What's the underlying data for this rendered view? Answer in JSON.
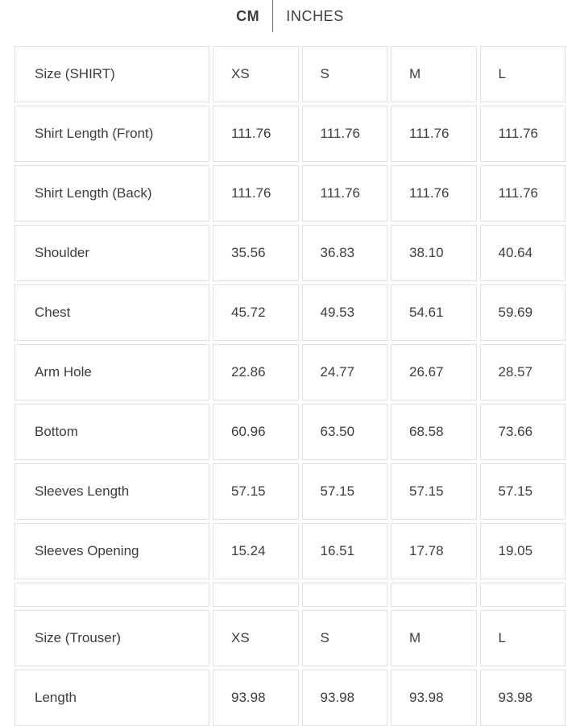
{
  "unit_toggle": {
    "options": [
      {
        "label": "CM",
        "active": true
      },
      {
        "label": "INCHES",
        "active": false
      }
    ]
  },
  "size_chart": {
    "rows": [
      {
        "kind": "header",
        "label": "Size (SHIRT)",
        "values": [
          "XS",
          "S",
          "M",
          "L"
        ]
      },
      {
        "kind": "data",
        "label": "Shirt Length (Front)",
        "values": [
          "111.76",
          "111.76",
          "111.76",
          "111.76"
        ]
      },
      {
        "kind": "data",
        "label": "Shirt Length (Back)",
        "values": [
          "111.76",
          "111.76",
          "111.76",
          "111.76"
        ]
      },
      {
        "kind": "data",
        "label": "Shoulder",
        "values": [
          "35.56",
          "36.83",
          "38.10",
          "40.64"
        ]
      },
      {
        "kind": "data",
        "label": "Chest",
        "values": [
          "45.72",
          "49.53",
          "54.61",
          "59.69"
        ]
      },
      {
        "kind": "data",
        "label": "Arm Hole",
        "values": [
          "22.86",
          "24.77",
          "26.67",
          "28.57"
        ]
      },
      {
        "kind": "data",
        "label": "Bottom",
        "values": [
          "60.96",
          "63.50",
          "68.58",
          "73.66"
        ]
      },
      {
        "kind": "data",
        "label": "Sleeves Length",
        "values": [
          "57.15",
          "57.15",
          "57.15",
          "57.15"
        ]
      },
      {
        "kind": "data",
        "label": "Sleeves Opening",
        "values": [
          "15.24",
          "16.51",
          "17.78",
          "19.05"
        ]
      },
      {
        "kind": "spacer",
        "label": "",
        "values": [
          "",
          "",
          "",
          ""
        ]
      },
      {
        "kind": "header",
        "label": "Size (Trouser)",
        "values": [
          "XS",
          "S",
          "M",
          "L"
        ]
      },
      {
        "kind": "data",
        "label": "Length",
        "values": [
          "93.98",
          "93.98",
          "93.98",
          "93.98"
        ]
      }
    ]
  },
  "colors": {
    "text": "#3d3d3d",
    "cell_border": "#e0e0e0",
    "tab_divider": "#6e6e6e",
    "background": "#ffffff"
  }
}
